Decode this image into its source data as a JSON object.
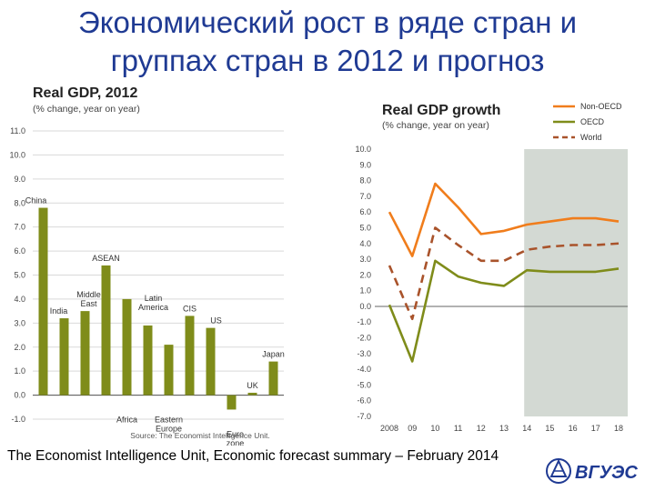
{
  "slide": {
    "title_line1": "Экономический рост в ряде стран и",
    "title_line2": "группах стран в 2012 и прогноз",
    "footer": "The Economist Intelligence Unit, Economic forecast summary – February 2014",
    "logo_text": "ВГУЭС"
  },
  "chart_data": [
    {
      "type": "bar",
      "title": "Real GDP, 2012",
      "subtitle": "(% change, year on year)",
      "categories": [
        "China",
        "India",
        "Middle East",
        "ASEAN",
        "Africa",
        "Latin America",
        "Eastern Europe",
        "CIS",
        "US",
        "Euro zone",
        "UK",
        "Japan"
      ],
      "values": [
        7.8,
        3.2,
        3.5,
        5.4,
        4.0,
        2.9,
        2.1,
        3.3,
        2.8,
        -0.6,
        0.1,
        1.4
      ],
      "ylim": [
        -1.0,
        11.0
      ],
      "yticks": [
        "11.0",
        "10.0",
        "9.0",
        "8.0",
        "7.0",
        "6.0",
        "5.0",
        "4.0",
        "3.0",
        "2.0",
        "1.0",
        "0.0",
        "-1.0"
      ],
      "source": "Source: The Economist Intelligence Unit.",
      "bar_color": "#7f8c1a"
    },
    {
      "type": "line",
      "title": "Real GDP growth",
      "subtitle": "(% change,  year on year)",
      "x": [
        "2008",
        "09",
        "10",
        "11",
        "12",
        "13",
        "14",
        "15",
        "16",
        "17",
        "18"
      ],
      "ylim": [
        -7.0,
        10.0
      ],
      "yticks": [
        "10.0",
        "9.0",
        "8.0",
        "7.0",
        "6.0",
        "5.0",
        "4.0",
        "3.0",
        "2.0",
        "1.0",
        "0.0",
        "-1.0",
        "-2.0",
        "-3.0",
        "-4.0",
        "-5.0",
        "-6.0",
        "-7.0"
      ],
      "forecast_start": "14",
      "series": [
        {
          "name": "Non-OECD",
          "color": "#f07d1c",
          "dash": false,
          "values": [
            6.0,
            3.2,
            7.8,
            6.3,
            4.6,
            4.8,
            5.2,
            5.4,
            5.6,
            5.6,
            5.4
          ]
        },
        {
          "name": "OECD",
          "color": "#7f8c1a",
          "dash": false,
          "values": [
            0.1,
            -3.5,
            2.9,
            1.9,
            1.5,
            1.3,
            2.3,
            2.2,
            2.2,
            2.2,
            2.4
          ]
        },
        {
          "name": "World",
          "color": "#a9532b",
          "dash": true,
          "values": [
            2.6,
            -0.8,
            5.0,
            3.9,
            2.9,
            2.9,
            3.6,
            3.8,
            3.9,
            3.9,
            4.0
          ]
        }
      ]
    }
  ]
}
